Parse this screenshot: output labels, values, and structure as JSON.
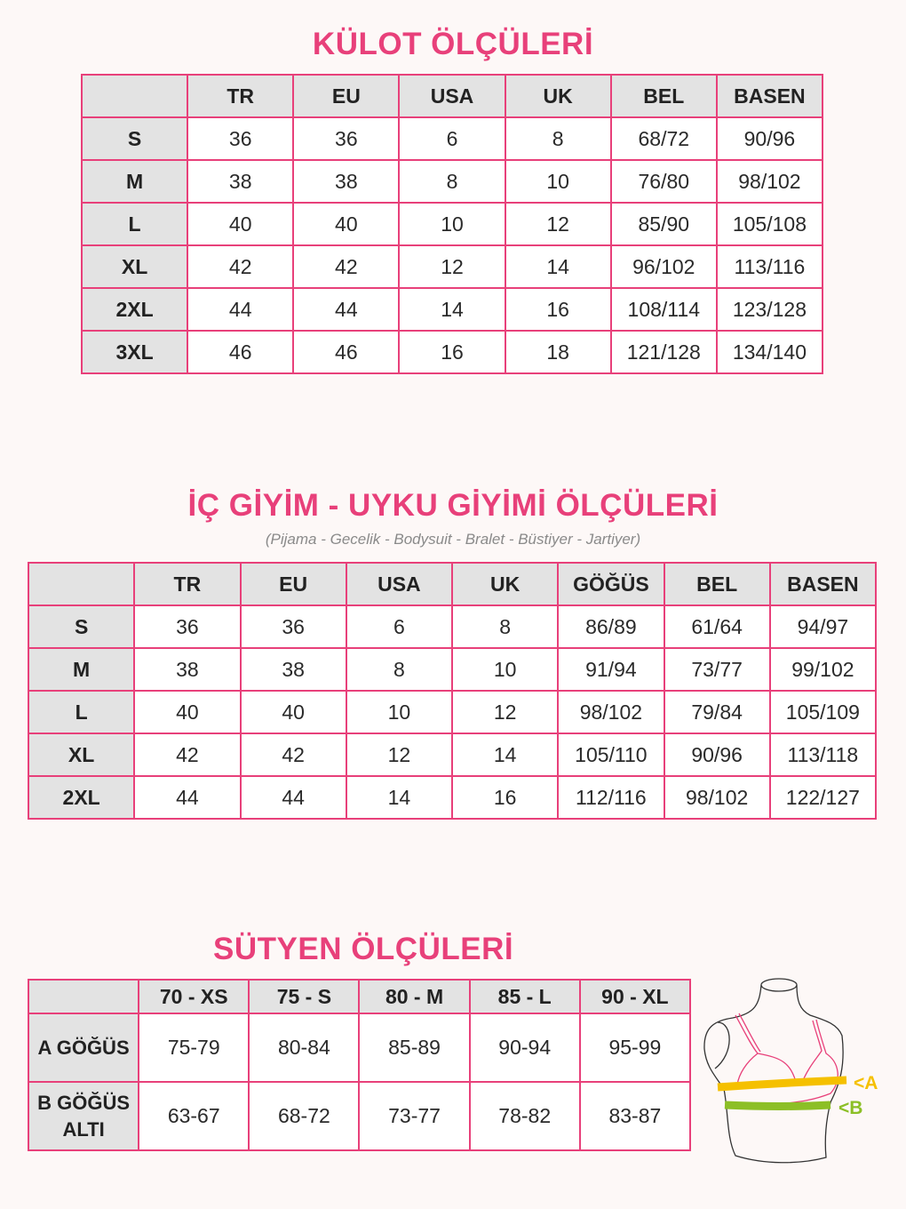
{
  "panty": {
    "title": "KÜLOT ÖLÇÜLERİ",
    "headers": [
      "",
      "TR",
      "EU",
      "USA",
      "UK",
      "BEL",
      "BASEN"
    ],
    "rows": [
      [
        "S",
        "36",
        "36",
        "6",
        "8",
        "68/72",
        "90/96"
      ],
      [
        "M",
        "38",
        "38",
        "8",
        "10",
        "76/80",
        "98/102"
      ],
      [
        "L",
        "40",
        "40",
        "10",
        "12",
        "85/90",
        "105/108"
      ],
      [
        "XL",
        "42",
        "42",
        "12",
        "14",
        "96/102",
        "113/116"
      ],
      [
        "2XL",
        "44",
        "44",
        "14",
        "16",
        "108/114",
        "123/128"
      ],
      [
        "3XL",
        "46",
        "46",
        "16",
        "18",
        "121/128",
        "134/140"
      ]
    ]
  },
  "underwear": {
    "title": "İÇ GİYİM - UYKU GİYİMİ ÖLÇÜLERİ",
    "subtitle": "(Pijama - Gecelik - Bodysuit - Bralet - Büstiyer - Jartiyer)",
    "headers": [
      "",
      "TR",
      "EU",
      "USA",
      "UK",
      "GÖĞÜS",
      "BEL",
      "BASEN"
    ],
    "rows": [
      [
        "S",
        "36",
        "36",
        "6",
        "8",
        "86/89",
        "61/64",
        "94/97"
      ],
      [
        "M",
        "38",
        "38",
        "8",
        "10",
        "91/94",
        "73/77",
        "99/102"
      ],
      [
        "L",
        "40",
        "40",
        "10",
        "12",
        "98/102",
        "79/84",
        "105/109"
      ],
      [
        "XL",
        "42",
        "42",
        "12",
        "14",
        "105/110",
        "90/96",
        "113/118"
      ],
      [
        "2XL",
        "44",
        "44",
        "14",
        "16",
        "112/116",
        "98/102",
        "122/127"
      ]
    ]
  },
  "bra": {
    "title": "SÜTYEN ÖLÇÜLERİ",
    "headers": [
      "",
      "70 - XS",
      "75 - S",
      "80 - M",
      "85 - L",
      "90 - XL"
    ],
    "rows": [
      [
        "A GÖĞÜS",
        "75-79",
        "80-84",
        "85-89",
        "90-94",
        "95-99"
      ],
      [
        "B GÖĞÜS ALTI",
        "63-67",
        "68-72",
        "73-77",
        "78-82",
        "83-87"
      ]
    ],
    "illustration": {
      "label_a": "<A",
      "label_b": "<B",
      "color_a": "#f5c000",
      "color_b": "#8cbf26"
    }
  },
  "colors": {
    "accent": "#e8407a",
    "header_bg": "#e3e3e3",
    "background": "#fdf8f7"
  }
}
